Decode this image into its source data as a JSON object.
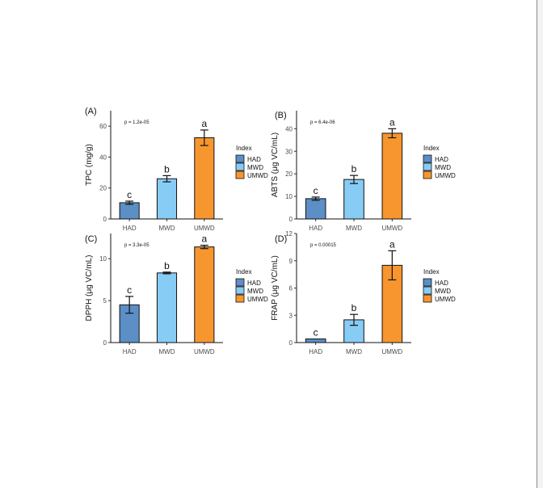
{
  "legend_title": "Index",
  "legend_items": [
    {
      "label": "HAD",
      "color": "#5b8fc6"
    },
    {
      "label": "MWD",
      "color": "#87ccf5"
    },
    {
      "label": "UMWD",
      "color": "#f7962f"
    }
  ],
  "chart_data": [
    {
      "type": "bar",
      "panel": "(A)",
      "pvalue": "p = 1.2e-05",
      "ylabel": "TPC (mg/g)",
      "xlabel": "",
      "categories": [
        "HAD",
        "MWD",
        "UMWD"
      ],
      "values": [
        10.5,
        26,
        52.5
      ],
      "errors": [
        1,
        2,
        5
      ],
      "letters": [
        "c",
        "b",
        "a"
      ],
      "ylim": [
        0,
        70
      ],
      "yticks": [
        0,
        20,
        40,
        60
      ],
      "legend": "right",
      "grid": false
    },
    {
      "type": "bar",
      "panel": "(B)",
      "pvalue": "p = 6.4e-06",
      "ylabel": "ABTS (μg VC/mL)",
      "xlabel": "",
      "categories": [
        "HAD",
        "MWD",
        "UMWD"
      ],
      "values": [
        9,
        17.5,
        38
      ],
      "errors": [
        0.7,
        1.8,
        2
      ],
      "letters": [
        "c",
        "b",
        "a"
      ],
      "ylim": [
        0,
        48
      ],
      "yticks": [
        0,
        10,
        20,
        30,
        40
      ],
      "legend": "right",
      "grid": false
    },
    {
      "type": "bar",
      "panel": "(C)",
      "pvalue": "p = 3.3e-05",
      "ylabel": "DPPH (μg VC/mL)",
      "xlabel": "",
      "categories": [
        "HAD",
        "MWD",
        "UMWD"
      ],
      "values": [
        4.5,
        8.3,
        11.4
      ],
      "errors": [
        1,
        0.1,
        0.2
      ],
      "letters": [
        "c",
        "b",
        "a"
      ],
      "ylim": [
        0,
        13
      ],
      "yticks": [
        0,
        5,
        10
      ],
      "legend": "right",
      "grid": false
    },
    {
      "type": "bar",
      "panel": "(D)",
      "pvalue": "p = 0.00015",
      "ylabel": "FRAP (μg VC/mL)",
      "xlabel": "",
      "categories": [
        "HAD",
        "MWD",
        "UMWD"
      ],
      "values": [
        0.4,
        2.5,
        8.5
      ],
      "errors": [
        0,
        0.6,
        1.6
      ],
      "letters": [
        "c",
        "b",
        "a"
      ],
      "ylim": [
        0,
        12
      ],
      "yticks": [
        0,
        3,
        6,
        9,
        12
      ],
      "legend": "right",
      "grid": false
    }
  ]
}
